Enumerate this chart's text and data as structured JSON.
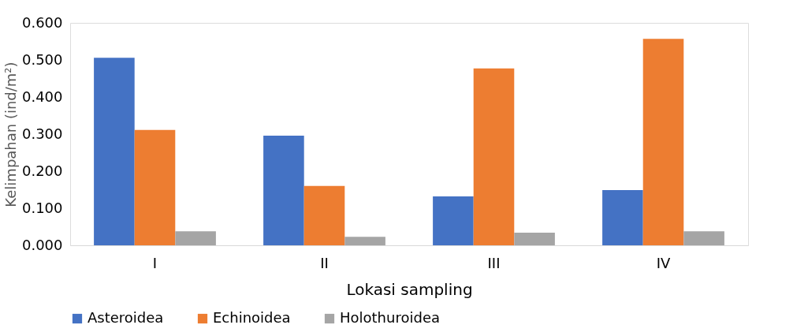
{
  "chart_data": {
    "type": "bar",
    "xlabel": "Lokasi sampling",
    "ylabel": "Kelimpahan (ind/m²)",
    "categories": [
      "I",
      "II",
      "III",
      "IV"
    ],
    "series": [
      {
        "name": "Asteroidea",
        "color": "#4472c4",
        "values": [
          0.506,
          0.296,
          0.132,
          0.149
        ]
      },
      {
        "name": "Echinoidea",
        "color": "#ed7d31",
        "values": [
          0.311,
          0.16,
          0.477,
          0.557
        ]
      },
      {
        "name": "Holothuroidea",
        "color": "#a5a5a5",
        "values": [
          0.038,
          0.023,
          0.034,
          0.038
        ]
      }
    ],
    "ylim": [
      0,
      0.6
    ],
    "yticks": [
      {
        "value": 0,
        "label": "0.000"
      },
      {
        "value": 0.1,
        "label": "0.100"
      },
      {
        "value": 0.2,
        "label": "0.200"
      },
      {
        "value": 0.3,
        "label": "0.300"
      },
      {
        "value": 0.4,
        "label": "0.400"
      },
      {
        "value": 0.5,
        "label": "0.500"
      },
      {
        "value": 0.6,
        "label": "0.600"
      }
    ],
    "grid": false,
    "legend": "bottom"
  }
}
